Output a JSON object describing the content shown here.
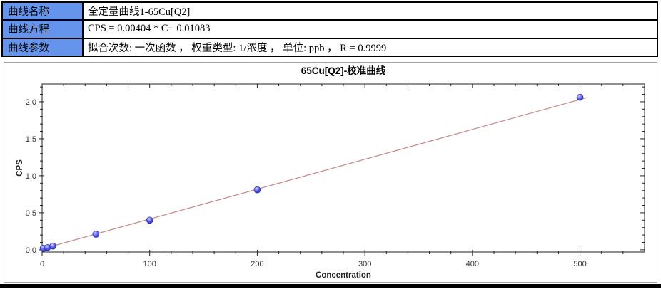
{
  "table": {
    "label_bg": "#6494EB",
    "rows": [
      {
        "label": "曲线名称",
        "value": "全定量曲线1-65Cu[Q2]"
      },
      {
        "label": "曲线方程",
        "value": "CPS = 0.00404 * C+ 0.01083"
      },
      {
        "label": "曲线参数",
        "value": "拟合次数: 一次函数 ， 权重类型: 1/浓度 ， 单位: ppb ， R = 0.9999"
      }
    ]
  },
  "chart_data": {
    "type": "scatter",
    "title": "65Cu[Q2]-校准曲线",
    "xlabel": "Concentration",
    "ylabel": "CPS",
    "x": [
      1,
      5,
      10,
      50,
      100,
      200,
      500
    ],
    "y": [
      0.02,
      0.03,
      0.05,
      0.21,
      0.4,
      0.81,
      2.06
    ],
    "fit_line": {
      "slope": 0.00404,
      "intercept": 0.01083,
      "x_start": 0,
      "x_end": 507,
      "color": "#c98585"
    },
    "xlim": [
      0,
      560
    ],
    "ylim": [
      -0.03,
      2.24
    ],
    "x_major_ticks": [
      0,
      100,
      200,
      300,
      400,
      500
    ],
    "x_minor_step": 20,
    "y_major_ticks": [
      0.0,
      0.5,
      1.0,
      1.5,
      2.0
    ],
    "y_minor_step": 0.1,
    "grid": false,
    "legend_position": "none",
    "point_color": "#3a3ac8",
    "axis_color": "#222222",
    "tick_label_color": "#333333"
  }
}
